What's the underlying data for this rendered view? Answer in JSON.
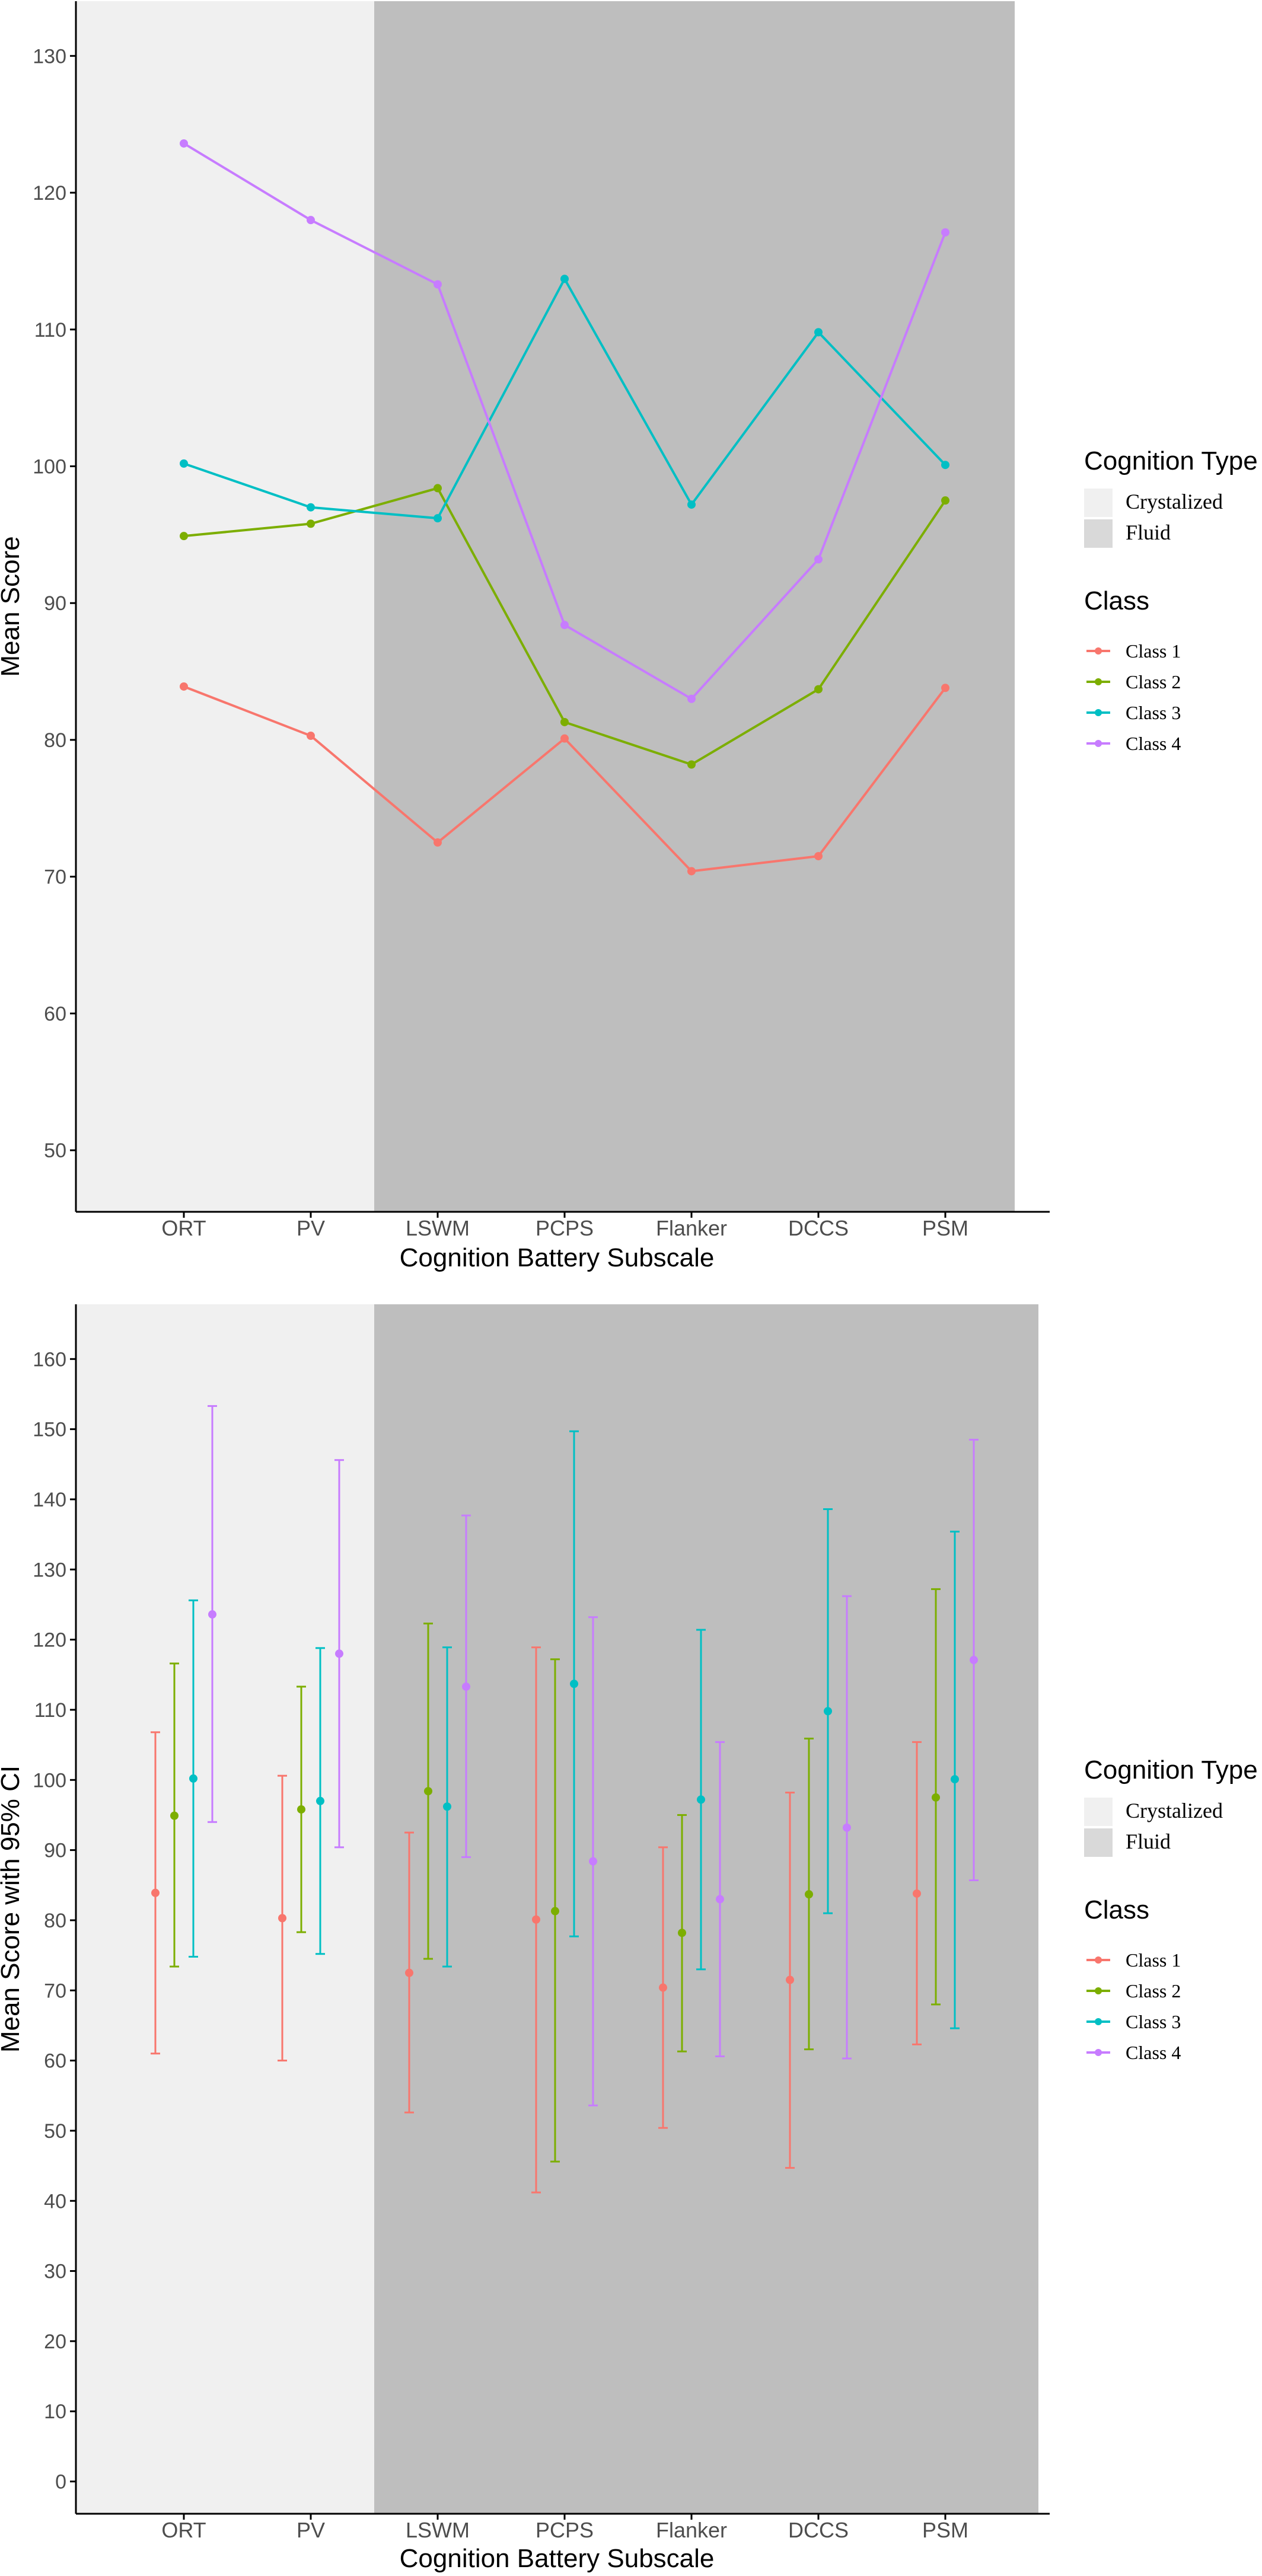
{
  "colors": {
    "class1": "#F8766D",
    "class2": "#7CAE00",
    "class3": "#00BFC4",
    "class4": "#C77CFF",
    "crystalized_bg": "#F0F0F0",
    "fluid_bg": "#BEBEBE",
    "axis": "#000000",
    "tick_text": "#4D4D4D"
  },
  "legend": {
    "cognition_title": "Cognition Type",
    "cognition_items": [
      "Crystalized",
      "Fluid"
    ],
    "class_title": "Class",
    "class_items": [
      "Class 1",
      "Class 2",
      "Class 3",
      "Class 4"
    ]
  },
  "chart_data": [
    {
      "type": "line",
      "xlabel": "Cognition Battery Subscale",
      "ylabel": "Mean Score",
      "categories": [
        "ORT",
        "PV",
        "LSWM",
        "PCPS",
        "Flanker",
        "DCCS",
        "PSM"
      ],
      "yticks": [
        50,
        60,
        70,
        80,
        90,
        100,
        110,
        120,
        130
      ],
      "ylim": [
        45.5,
        134
      ],
      "shaded_regions": [
        {
          "type": "Crystalized",
          "from": "ORT",
          "to": "PV"
        },
        {
          "type": "Fluid",
          "from": "LSWM",
          "to": "PSM"
        }
      ],
      "series": [
        {
          "name": "Class 1",
          "values": [
            83.9,
            80.3,
            72.5,
            80.1,
            70.4,
            71.5,
            83.8
          ]
        },
        {
          "name": "Class 2",
          "values": [
            94.9,
            95.8,
            98.4,
            81.3,
            78.2,
            83.7,
            97.5
          ]
        },
        {
          "name": "Class 3",
          "values": [
            100.2,
            97.0,
            96.2,
            113.7,
            97.2,
            109.8,
            100.1
          ]
        },
        {
          "name": "Class 4",
          "values": [
            123.6,
            118.0,
            113.3,
            88.4,
            83.0,
            93.2,
            117.1
          ]
        }
      ]
    },
    {
      "type": "errorbar",
      "xlabel": "Cognition Battery Subscale",
      "ylabel": "Mean Score with 95% CI",
      "categories": [
        "ORT",
        "PV",
        "LSWM",
        "PCPS",
        "Flanker",
        "DCCS",
        "PSM"
      ],
      "yticks": [
        0,
        10,
        20,
        30,
        40,
        50,
        60,
        70,
        80,
        90,
        100,
        110,
        120,
        130,
        140,
        150,
        160
      ],
      "ylim": [
        -4.6,
        167.8
      ],
      "shaded_regions": [
        {
          "type": "Crystalized",
          "from": "ORT",
          "to": "PV"
        },
        {
          "type": "Fluid",
          "from": "LSWM",
          "to": "PSM"
        }
      ],
      "series": [
        {
          "name": "Class 1",
          "mean": [
            83.9,
            80.3,
            72.5,
            80.1,
            70.4,
            71.5,
            83.8
          ],
          "lower": [
            61.0,
            60.0,
            52.6,
            41.2,
            50.4,
            44.7,
            62.3
          ],
          "upper": [
            106.8,
            100.6,
            92.5,
            118.9,
            90.4,
            98.2,
            105.4
          ]
        },
        {
          "name": "Class 2",
          "mean": [
            94.9,
            95.8,
            98.4,
            81.3,
            78.2,
            83.7,
            97.5
          ],
          "lower": [
            73.4,
            78.3,
            74.5,
            45.6,
            61.3,
            61.6,
            68.0
          ],
          "upper": [
            116.6,
            113.3,
            122.3,
            117.2,
            95.0,
            105.9,
            127.2
          ]
        },
        {
          "name": "Class 3",
          "mean": [
            100.2,
            97.0,
            96.2,
            113.7,
            97.2,
            109.8,
            100.1
          ],
          "lower": [
            74.8,
            75.2,
            73.4,
            77.7,
            73.0,
            81.0,
            64.6
          ],
          "upper": [
            125.6,
            118.8,
            118.9,
            149.7,
            121.4,
            138.6,
            135.4
          ]
        },
        {
          "name": "Class 4",
          "mean": [
            123.6,
            118.0,
            113.3,
            88.4,
            83.0,
            93.2,
            117.1
          ],
          "lower": [
            94.0,
            90.4,
            89.0,
            53.6,
            60.6,
            60.3,
            85.7
          ],
          "upper": [
            153.3,
            145.6,
            137.7,
            123.2,
            105.4,
            126.2,
            148.5
          ]
        }
      ]
    }
  ]
}
